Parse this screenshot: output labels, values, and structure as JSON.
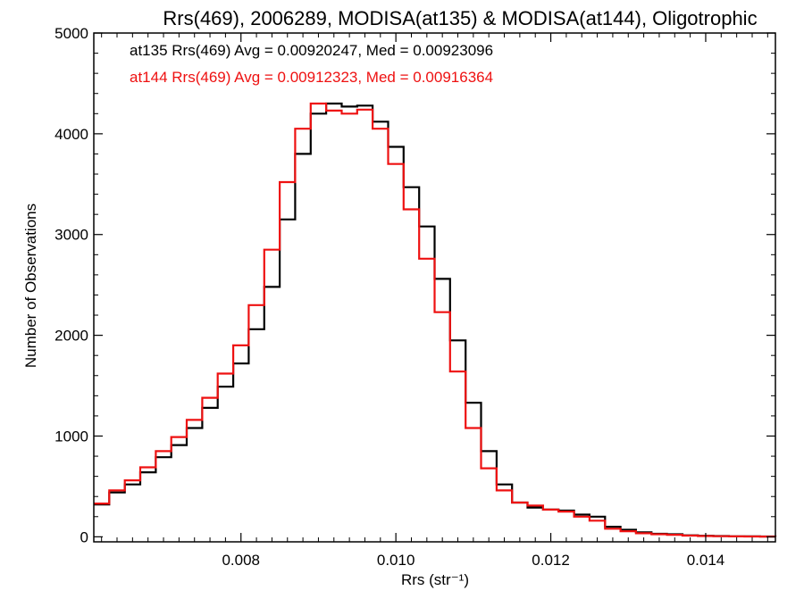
{
  "chart_data": {
    "type": "line",
    "title": "Rrs(469), 2006289, MODISA(at135) & MODISA(at144), Oligotrophic",
    "xlabel": "Rrs (str⁻¹)",
    "ylabel": "Number of Observations",
    "xlim": [
      0.0061,
      0.0149
    ],
    "ylim": [
      -50,
      5000
    ],
    "xticks": [
      0.008,
      0.01,
      0.012,
      0.014
    ],
    "xtick_labels": [
      "0.008",
      "0.010",
      "0.012",
      "0.014"
    ],
    "yticks": [
      0,
      1000,
      2000,
      3000,
      4000,
      5000
    ],
    "ytick_labels": [
      "0",
      "1000",
      "2000",
      "3000",
      "4000",
      "5000"
    ],
    "grid": false,
    "line_style": "step",
    "annotations": [
      {
        "text": "at135 Rrs(469) Avg = 0.00920247, Med = 0.00923096",
        "color": "#000000"
      },
      {
        "text": "at144 Rrs(469) Avg = 0.00912323, Med = 0.00916364",
        "color": "#ee1111"
      }
    ],
    "series": [
      {
        "color": "#000000",
        "x": [
          0.0061,
          0.0063,
          0.0065,
          0.0067,
          0.0069,
          0.0071,
          0.0073,
          0.0075,
          0.0077,
          0.0079,
          0.0081,
          0.0083,
          0.0085,
          0.0087,
          0.0089,
          0.0091,
          0.0093,
          0.0095,
          0.0097,
          0.0099,
          0.0101,
          0.0103,
          0.0105,
          0.0107,
          0.0109,
          0.0111,
          0.0113,
          0.0115,
          0.0117,
          0.0119,
          0.0121,
          0.0123,
          0.0125,
          0.0127,
          0.0129,
          0.0131,
          0.0133,
          0.0135,
          0.0137,
          0.0139,
          0.0141,
          0.0143,
          0.0145,
          0.0147,
          0.0149
        ],
        "y": [
          320,
          440,
          520,
          640,
          790,
          910,
          1080,
          1280,
          1490,
          1720,
          2060,
          2480,
          3150,
          3800,
          4200,
          4300,
          4270,
          4280,
          4120,
          3870,
          3470,
          3080,
          2560,
          1950,
          1330,
          850,
          520,
          340,
          290,
          270,
          260,
          220,
          200,
          100,
          70,
          45,
          30,
          25,
          15,
          10,
          8,
          5,
          4,
          3,
          2
        ]
      },
      {
        "color": "#ee1111",
        "x": [
          0.0061,
          0.0063,
          0.0065,
          0.0067,
          0.0069,
          0.0071,
          0.0073,
          0.0075,
          0.0077,
          0.0079,
          0.0081,
          0.0083,
          0.0085,
          0.0087,
          0.0089,
          0.0091,
          0.0093,
          0.0095,
          0.0097,
          0.0099,
          0.0101,
          0.0103,
          0.0105,
          0.0107,
          0.0109,
          0.0111,
          0.0113,
          0.0115,
          0.0117,
          0.0119,
          0.0121,
          0.0123,
          0.0125,
          0.0127,
          0.0129,
          0.0131,
          0.0133,
          0.0135,
          0.0137,
          0.0139,
          0.0141,
          0.0143,
          0.0145,
          0.0147,
          0.0149
        ],
        "y": [
          330,
          460,
          560,
          690,
          850,
          990,
          1160,
          1380,
          1620,
          1900,
          2300,
          2850,
          3520,
          4050,
          4300,
          4230,
          4200,
          4240,
          4050,
          3700,
          3250,
          2760,
          2230,
          1640,
          1080,
          680,
          460,
          340,
          310,
          270,
          250,
          200,
          160,
          80,
          55,
          35,
          25,
          20,
          12,
          8,
          6,
          4,
          3,
          2,
          1
        ]
      }
    ]
  }
}
